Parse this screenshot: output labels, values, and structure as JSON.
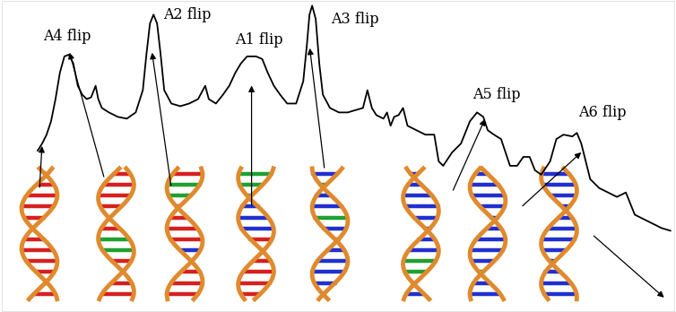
{
  "chart_data": {
    "type": "line",
    "color": "#000000",
    "x": [
      40,
      45,
      50,
      55,
      60,
      65,
      70,
      75,
      80,
      85,
      90,
      95,
      100,
      105,
      108,
      112,
      120,
      130,
      140,
      150,
      158,
      162,
      166,
      170,
      174,
      178,
      182,
      190,
      200,
      210,
      220,
      228,
      232,
      240,
      248,
      255,
      262,
      268,
      275,
      285,
      292,
      298,
      305,
      312,
      320,
      330,
      338,
      342,
      345,
      348,
      352,
      356,
      360,
      368,
      378,
      388,
      398,
      405,
      410,
      415,
      420,
      428,
      432,
      436,
      440,
      445,
      450,
      455,
      465,
      475,
      485,
      490,
      495,
      505,
      515,
      525,
      533,
      540,
      545,
      552,
      560,
      565,
      570,
      578,
      585,
      592,
      598,
      605,
      615,
      622,
      630,
      640,
      645,
      650,
      655,
      660,
      670,
      680,
      690,
      700,
      710,
      720,
      730,
      740,
      750
    ],
    "values": [
      180,
      188,
      198,
      213,
      238,
      268,
      286,
      288,
      278,
      253,
      243,
      238,
      240,
      253,
      238,
      228,
      223,
      218,
      216,
      223,
      248,
      288,
      323,
      333,
      323,
      288,
      248,
      233,
      230,
      233,
      238,
      253,
      238,
      233,
      243,
      253,
      268,
      278,
      286,
      286,
      283,
      268,
      253,
      243,
      233,
      233,
      258,
      298,
      333,
      343,
      328,
      278,
      243,
      228,
      223,
      223,
      226,
      228,
      248,
      228,
      220,
      216,
      223,
      208,
      218,
      220,
      228,
      208,
      203,
      198,
      198,
      168,
      163,
      178,
      188,
      213,
      223,
      218,
      203,
      198,
      193,
      178,
      163,
      163,
      173,
      173,
      158,
      153,
      168,
      193,
      198,
      196,
      200,
      188,
      168,
      148,
      138,
      133,
      128,
      133,
      108,
      103,
      98,
      93,
      90
    ],
    "xlim": [
      0,
      754
    ],
    "ylim": [
      0,
      348
    ],
    "xticks": [],
    "yticks": [],
    "tick_labels": false,
    "annotations": [
      {
        "text": "A4 flip",
        "x": 73,
        "y": 288
      },
      {
        "text": "A2 flip",
        "x": 170,
        "y": 333
      },
      {
        "text": "A1 flip",
        "x": 280,
        "y": 286
      },
      {
        "text": "A3 flip",
        "x": 348,
        "y": 343
      },
      {
        "text": "A5 flip",
        "x": 535,
        "y": 223
      },
      {
        "text": "A6 flip",
        "x": 645,
        "y": 200
      }
    ]
  }
}
